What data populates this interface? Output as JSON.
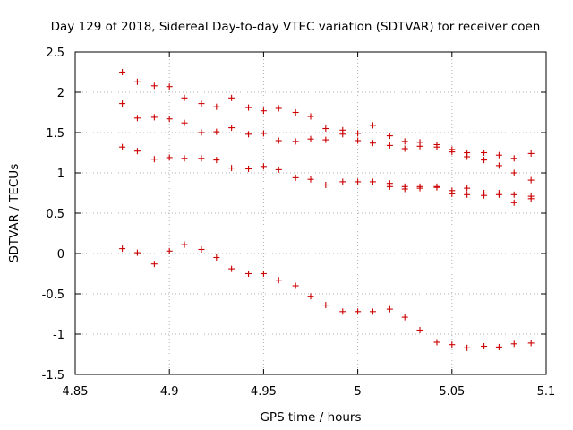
{
  "chart_data": {
    "type": "scatter",
    "title": "Day 129 of 2018, Sidereal Day-to-day VTEC variation (SDTVAR) for receiver coen",
    "xlabel": "GPS time / hours",
    "ylabel": "SDTVAR / TECUs",
    "xlim": [
      4.85,
      5.1
    ],
    "ylim": [
      -1.5,
      2.5
    ],
    "x_ticks": [
      4.85,
      4.9,
      4.95,
      5.0,
      5.05,
      5.1
    ],
    "x_tick_labels": [
      "4.85",
      "4.9",
      "4.95",
      "5",
      "5.05",
      "5.1"
    ],
    "y_ticks": [
      -1.5,
      -1.0,
      -0.5,
      0.0,
      0.5,
      1.0,
      1.5,
      2.0,
      2.5
    ],
    "y_tick_labels": [
      "-1.5",
      "-1",
      "-0.5",
      "0",
      "0.5",
      "1",
      "1.5",
      "2",
      "2.5"
    ],
    "grid": true,
    "marker": "+",
    "color": "#cc0000",
    "series": [
      {
        "name": "series-1",
        "x": [
          4.875,
          4.883,
          4.892,
          4.9,
          4.908,
          4.917,
          4.925,
          4.933,
          4.942,
          4.95,
          4.958,
          4.967,
          4.975,
          4.983,
          4.992,
          5.0,
          5.008,
          5.017,
          5.025,
          5.033,
          5.042,
          5.05,
          5.058,
          5.067,
          5.075,
          5.083,
          5.092
        ],
        "y": [
          2.25,
          2.13,
          2.08,
          2.07,
          1.93,
          1.86,
          1.82,
          1.93,
          1.81,
          1.77,
          1.8,
          1.75,
          1.7,
          1.55,
          1.53,
          1.49,
          1.59,
          1.46,
          1.39,
          1.38,
          1.35,
          1.29,
          1.25,
          1.25,
          1.22,
          1.18,
          1.24
        ]
      },
      {
        "name": "series-2",
        "x": [
          4.875,
          4.883,
          4.892,
          4.9,
          4.908,
          4.917,
          4.925,
          4.933,
          4.942,
          4.95,
          4.958,
          4.967,
          4.975,
          4.983,
          4.992,
          5.0,
          5.008,
          5.017,
          5.025,
          5.033,
          5.042,
          5.05,
          5.058,
          5.067,
          5.075,
          5.083,
          5.092
        ],
        "y": [
          1.86,
          1.68,
          1.69,
          1.67,
          1.62,
          1.5,
          1.51,
          1.56,
          1.48,
          1.49,
          1.4,
          1.39,
          1.42,
          1.41,
          1.48,
          1.4,
          1.37,
          1.34,
          1.3,
          1.33,
          1.32,
          1.26,
          1.2,
          1.16,
          1.09,
          1.0,
          0.91
        ]
      },
      {
        "name": "series-3",
        "x": [
          4.875,
          4.883,
          4.892,
          4.9,
          4.908,
          4.917,
          4.925,
          4.933,
          4.942,
          4.95,
          4.958,
          4.967,
          4.975,
          4.983,
          4.992,
          5.0,
          5.008,
          5.017,
          5.025,
          5.033,
          5.042,
          5.05,
          5.058,
          5.067,
          5.075,
          5.083,
          5.092
        ],
        "y": [
          1.32,
          1.27,
          1.17,
          1.19,
          1.18,
          1.18,
          1.16,
          1.06,
          1.05,
          1.08,
          1.04,
          0.94,
          0.92,
          0.85,
          0.89,
          0.89,
          0.89,
          0.87,
          0.83,
          0.83,
          0.83,
          0.78,
          0.81,
          0.75,
          0.75,
          0.73,
          0.71
        ]
      },
      {
        "name": "series-4",
        "x": [
          5.017,
          5.025,
          5.033,
          5.042,
          5.05,
          5.058,
          5.067,
          5.075,
          5.083,
          5.092
        ],
        "y": [
          0.83,
          0.8,
          0.81,
          0.82,
          0.74,
          0.73,
          0.72,
          0.73,
          0.63,
          0.68
        ]
      },
      {
        "name": "series-5",
        "x": [
          4.875,
          4.883,
          4.892,
          4.9,
          4.908,
          4.917,
          4.925,
          4.933,
          4.942,
          4.95,
          4.958,
          4.967,
          4.975,
          4.983,
          4.992,
          5.0,
          5.008,
          5.017,
          5.025,
          5.033,
          5.042,
          5.05,
          5.058,
          5.067,
          5.075,
          5.083,
          5.092
        ],
        "y": [
          0.06,
          0.01,
          -0.13,
          0.03,
          0.11,
          0.05,
          -0.05,
          -0.19,
          -0.25,
          -0.25,
          -0.33,
          -0.4,
          -0.53,
          -0.64,
          -0.72,
          -0.72,
          -0.72,
          -0.69,
          -0.79,
          -0.95,
          -1.1,
          -1.13,
          -1.17,
          -1.15,
          -1.16,
          -1.12,
          -1.11
        ]
      }
    ]
  }
}
